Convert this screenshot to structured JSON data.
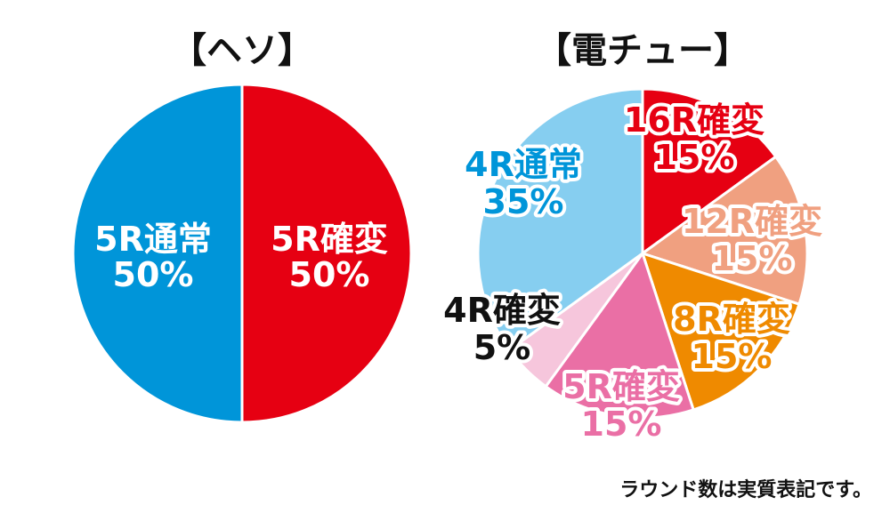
{
  "footer_note": "ラウンド数は実質表記です。",
  "chart_data": [
    {
      "type": "pie",
      "title": "【ヘソ】",
      "slices": [
        {
          "label": "5R確変",
          "value": 50,
          "value_label": "50%",
          "color": "#e60012"
        },
        {
          "label": "5R通常",
          "value": 50,
          "value_label": "50%",
          "color": "#0095d9"
        }
      ]
    },
    {
      "type": "pie",
      "title": "【電チュー】",
      "slices": [
        {
          "label": "16R確変",
          "value": 15,
          "value_label": "15%",
          "color": "#e60012"
        },
        {
          "label": "12R確変",
          "value": 15,
          "value_label": "15%",
          "color": "#f0a080"
        },
        {
          "label": "8R確変",
          "value": 15,
          "value_label": "15%",
          "color": "#ef8a00"
        },
        {
          "label": "5R確変",
          "value": 15,
          "value_label": "15%",
          "color": "#ea6fa5"
        },
        {
          "label": "4R確変",
          "value": 5,
          "value_label": "5%",
          "color": "#f6c6dc"
        },
        {
          "label": "4R通常",
          "value": 35,
          "value_label": "35%",
          "color": "#86cef0"
        }
      ]
    }
  ]
}
